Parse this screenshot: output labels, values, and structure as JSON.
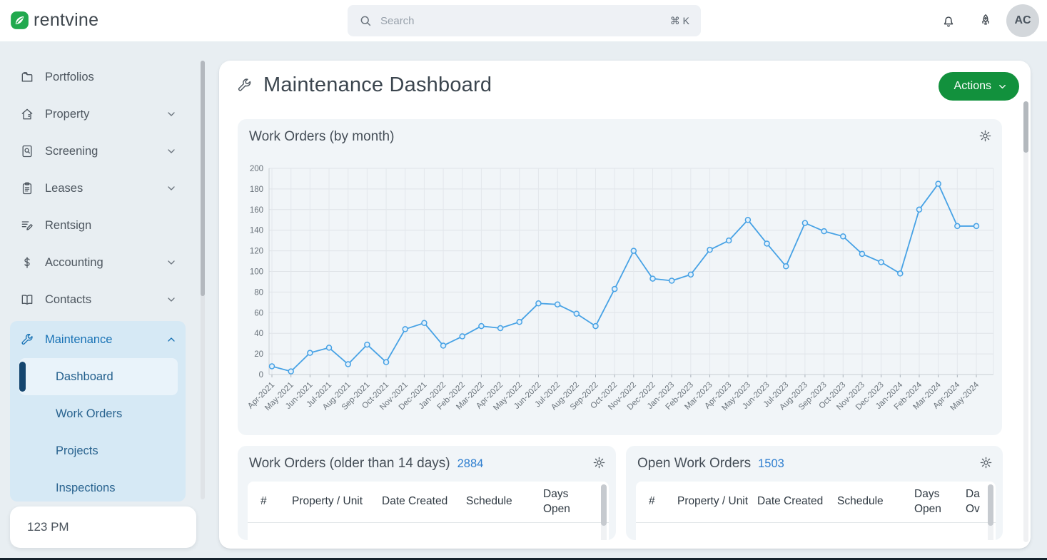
{
  "topbar": {
    "logo_text": "rentvine",
    "search": {
      "placeholder": "Search",
      "shortcut": "⌘ K"
    },
    "avatar": "AC"
  },
  "sidebar": {
    "items": [
      {
        "label": "Portfolios",
        "icon": "folder",
        "chevron": "none"
      },
      {
        "label": "Property",
        "icon": "house",
        "chevron": "down"
      },
      {
        "label": "Screening",
        "icon": "document-search",
        "chevron": "down"
      },
      {
        "label": "Leases",
        "icon": "clipboard",
        "chevron": "down"
      },
      {
        "label": "Rentsign",
        "icon": "signature",
        "chevron": "none"
      },
      {
        "label": "Accounting",
        "icon": "dollar",
        "chevron": "down"
      },
      {
        "label": "Contacts",
        "icon": "book",
        "chevron": "down"
      },
      {
        "label": "Maintenance",
        "icon": "wrench",
        "chevron": "up",
        "active": true
      }
    ],
    "maintenance_subitems": [
      {
        "label": "Dashboard",
        "selected": true
      },
      {
        "label": "Work Orders",
        "selected": false
      },
      {
        "label": "Projects",
        "selected": false
      },
      {
        "label": "Inspections",
        "selected": false
      }
    ],
    "footer": "123 PM"
  },
  "main": {
    "title": "Maintenance Dashboard",
    "actions_label": "Actions",
    "chart_card": {
      "title": "Work Orders (by month)"
    },
    "left_table": {
      "title": "Work Orders (older than 14 days)",
      "count": "2884",
      "columns": [
        "#",
        "Property / Unit",
        "Date Created",
        "Schedule",
        "Days Open"
      ]
    },
    "right_table": {
      "title": "Open Work Orders",
      "count": "1503",
      "columns": [
        "#",
        "Property / Unit",
        "Date Created",
        "Schedule",
        "Days Open"
      ],
      "clipped_column": {
        "line1": "Da",
        "line2": "Ov"
      }
    }
  },
  "chart_data": {
    "type": "line",
    "title": "Work Orders (by month)",
    "xlabel": "",
    "ylabel": "",
    "ylim": [
      0,
      200
    ],
    "ytick_step": 20,
    "grid": true,
    "legend_position": "none",
    "line_color": "#47a2e5",
    "categories": [
      "Apr-2021",
      "May-2021",
      "Jun-2021",
      "Jul-2021",
      "Aug-2021",
      "Sep-2021",
      "Oct-2021",
      "Nov-2021",
      "Dec-2021",
      "Jan-2022",
      "Feb-2022",
      "Mar-2022",
      "Apr-2022",
      "May-2022",
      "Jun-2022",
      "Jul-2022",
      "Aug-2022",
      "Sep-2022",
      "Oct-2022",
      "Nov-2022",
      "Dec-2022",
      "Jan-2023",
      "Feb-2023",
      "Mar-2023",
      "Apr-2023",
      "May-2023",
      "Jun-2023",
      "Jul-2023",
      "Aug-2023",
      "Sep-2023",
      "Oct-2023",
      "Nov-2023",
      "Dec-2023",
      "Jan-2024",
      "Feb-2024",
      "Mar-2024",
      "Apr-2024",
      "May-2024"
    ],
    "values": [
      8,
      3,
      21,
      26,
      10,
      29,
      12,
      44,
      50,
      28,
      37,
      47,
      45,
      51,
      69,
      68,
      59,
      47,
      83,
      120,
      93,
      91,
      97,
      121,
      130,
      150,
      127,
      105,
      147,
      139,
      134,
      117,
      109,
      98,
      160,
      185,
      144,
      144
    ]
  },
  "colors": {
    "brand_green": "#12913d",
    "logo_green": "#21a94e",
    "link_blue": "#2e7ecf",
    "sidebar_active_blue": "#1872b5",
    "chart_line": "#47a2e5"
  }
}
